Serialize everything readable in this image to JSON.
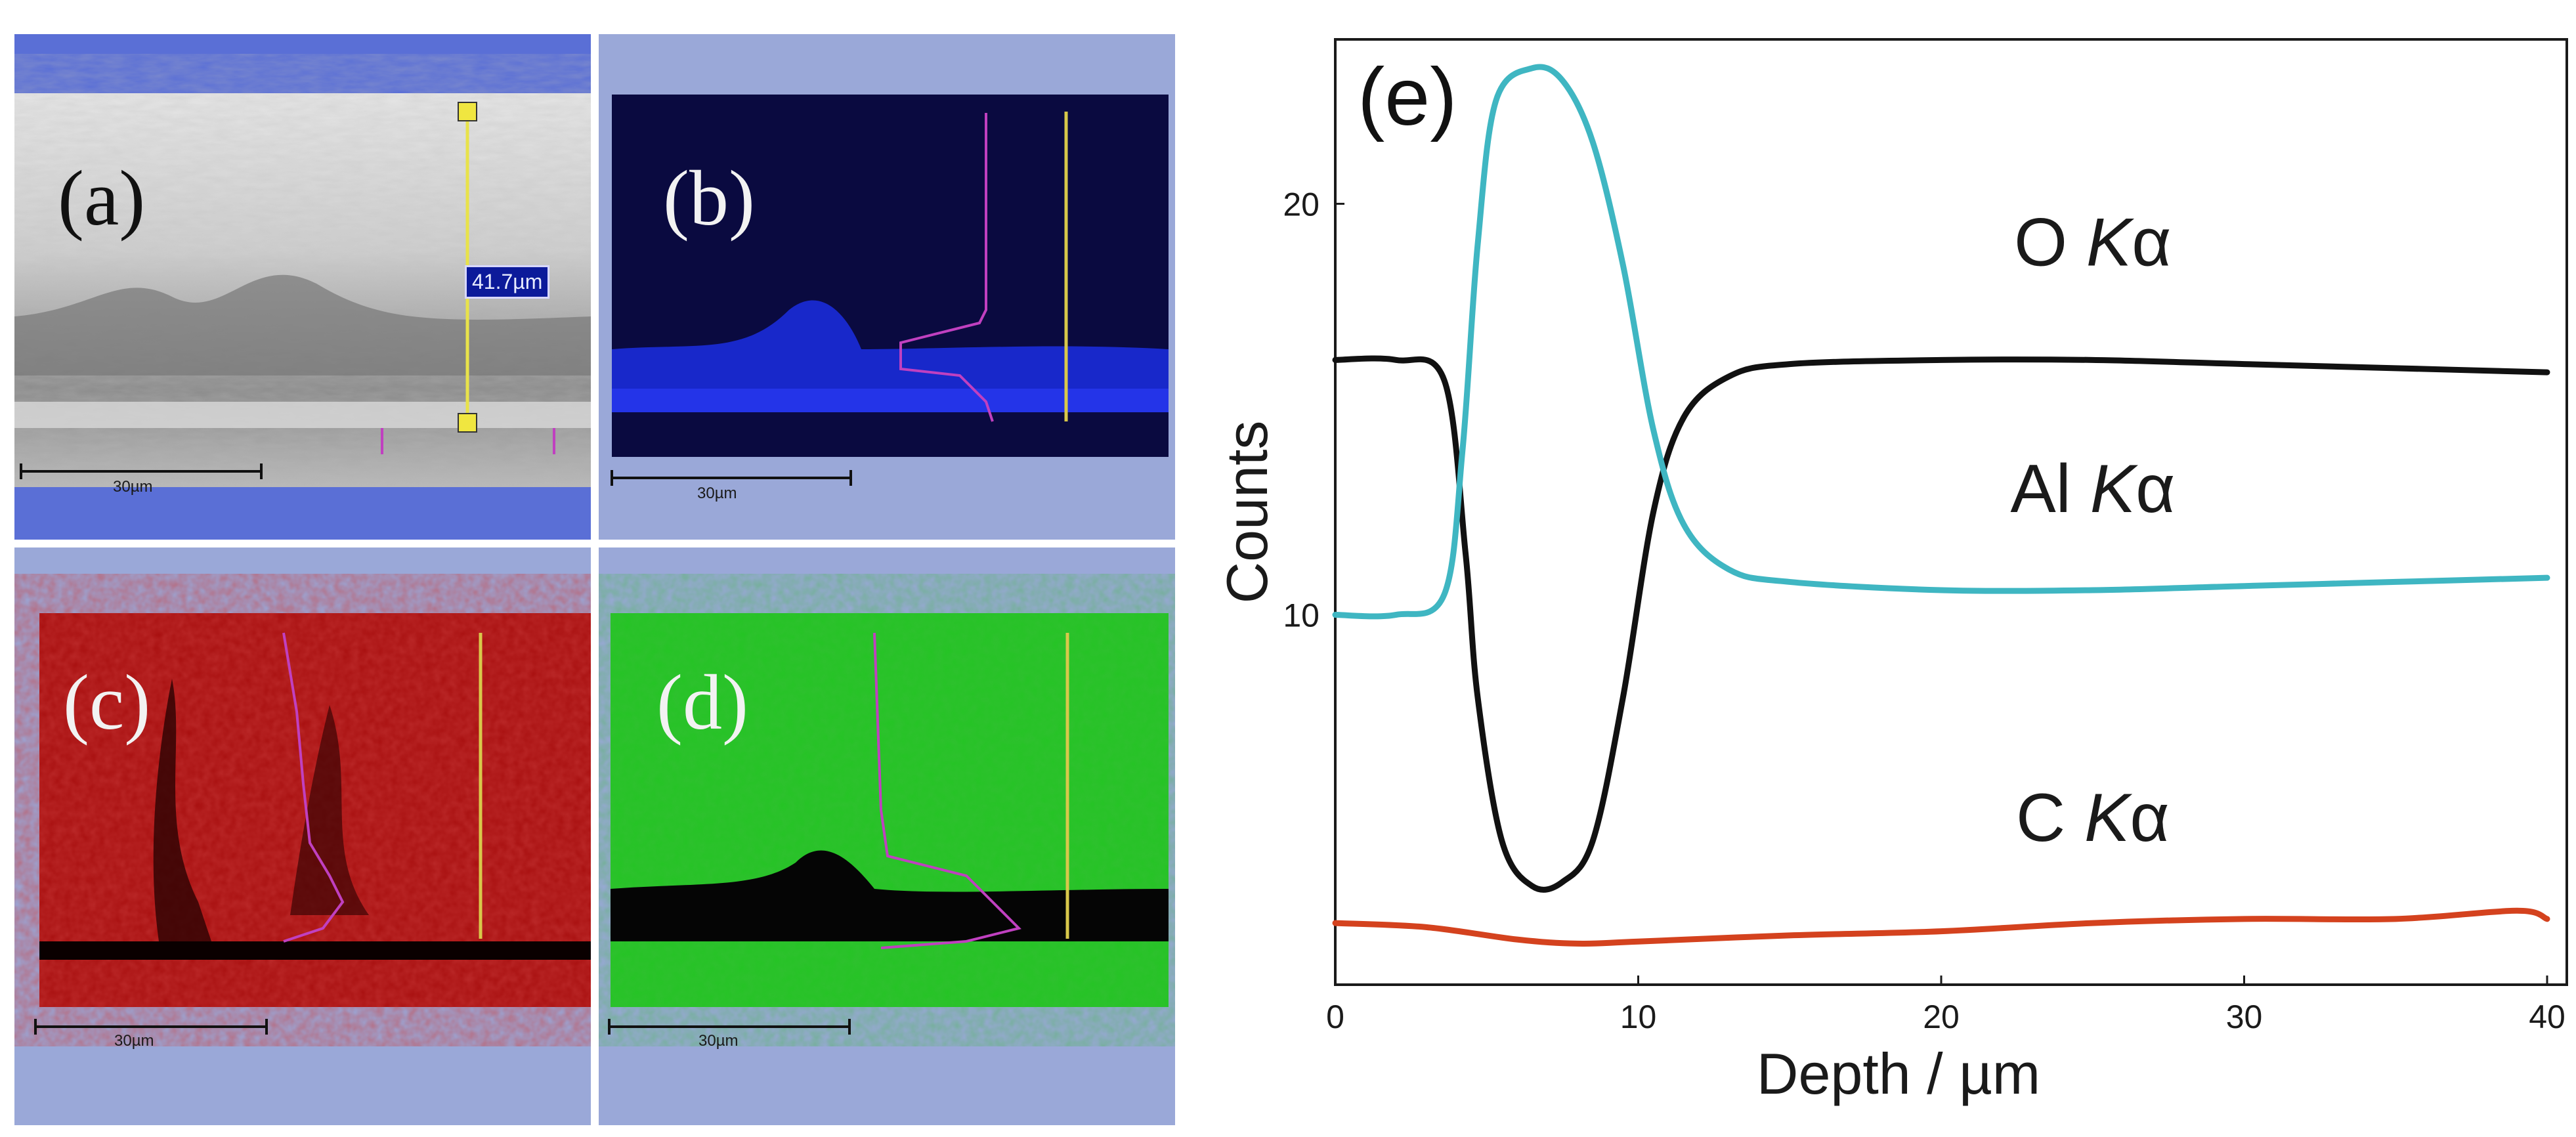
{
  "panels": {
    "a": {
      "label": "(a)",
      "scale_bar": "30µm",
      "measurement": "41.7µm"
    },
    "b": {
      "label": "(b)",
      "scale_bar": "30µm"
    },
    "c": {
      "label": "(c)",
      "scale_bar": "30µm"
    },
    "d": {
      "label": "(d)",
      "scale_bar": "30µm"
    }
  },
  "colors": {
    "frame": "#9aa8d8",
    "blue_map": "#1a2bd9",
    "red_map": "#b50f0f",
    "green_map": "#23c623",
    "profile_line": "#c040c0",
    "marker_line": "#d8c84a"
  },
  "chart_data": {
    "type": "line",
    "title": "(e)",
    "xlabel": "Depth / µm",
    "ylabel": "Counts",
    "xlim": [
      0,
      40
    ],
    "ylim": [
      1,
      24
    ],
    "xticks": [
      0,
      10,
      20,
      30,
      40
    ],
    "yticks": [
      10,
      20
    ],
    "grid": false,
    "series": [
      {
        "name": "O Kα",
        "color": "#111111",
        "x": [
          0,
          2,
          3.6,
          4.3,
          4.7,
          5.5,
          6.5,
          7.5,
          8.5,
          9.5,
          10.5,
          11.5,
          13,
          15,
          20,
          25,
          30,
          35,
          40
        ],
        "y": [
          16.2,
          16.2,
          15.7,
          11.5,
          8.0,
          4.5,
          3.4,
          3.5,
          4.5,
          8.0,
          12.5,
          14.8,
          15.8,
          16.1,
          16.2,
          16.2,
          16.1,
          16.0,
          15.9
        ]
      },
      {
        "name": "Al Kα",
        "color": "#3fb6c2",
        "x": [
          0,
          2,
          3.6,
          4.2,
          4.7,
          5.3,
          6.5,
          7.5,
          8.5,
          9.5,
          10.5,
          11.5,
          13,
          15,
          20,
          25,
          30,
          35,
          40
        ],
        "y": [
          10.0,
          10.0,
          10.5,
          14.0,
          19.0,
          22.5,
          23.3,
          23.0,
          21.5,
          18.5,
          14.5,
          12.2,
          11.1,
          10.8,
          10.6,
          10.6,
          10.7,
          10.8,
          10.9
        ]
      },
      {
        "name": "C Kα",
        "color": "#d4421e",
        "x": [
          0,
          3,
          6,
          8,
          10,
          15,
          20,
          25,
          30,
          35,
          39,
          40
        ],
        "y": [
          2.5,
          2.4,
          2.1,
          2.0,
          2.05,
          2.2,
          2.3,
          2.5,
          2.6,
          2.6,
          2.8,
          2.6
        ]
      }
    ],
    "annotations": [
      {
        "text_main": "O ",
        "text_italic": "K",
        "text_tail": "α",
        "at": [
          25,
          18.5
        ]
      },
      {
        "text_main": "Al ",
        "text_italic": "K",
        "text_tail": "α",
        "at": [
          25,
          12.5
        ]
      },
      {
        "text_main": "C ",
        "text_italic": "K",
        "text_tail": "α",
        "at": [
          25,
          4.5
        ]
      }
    ]
  }
}
